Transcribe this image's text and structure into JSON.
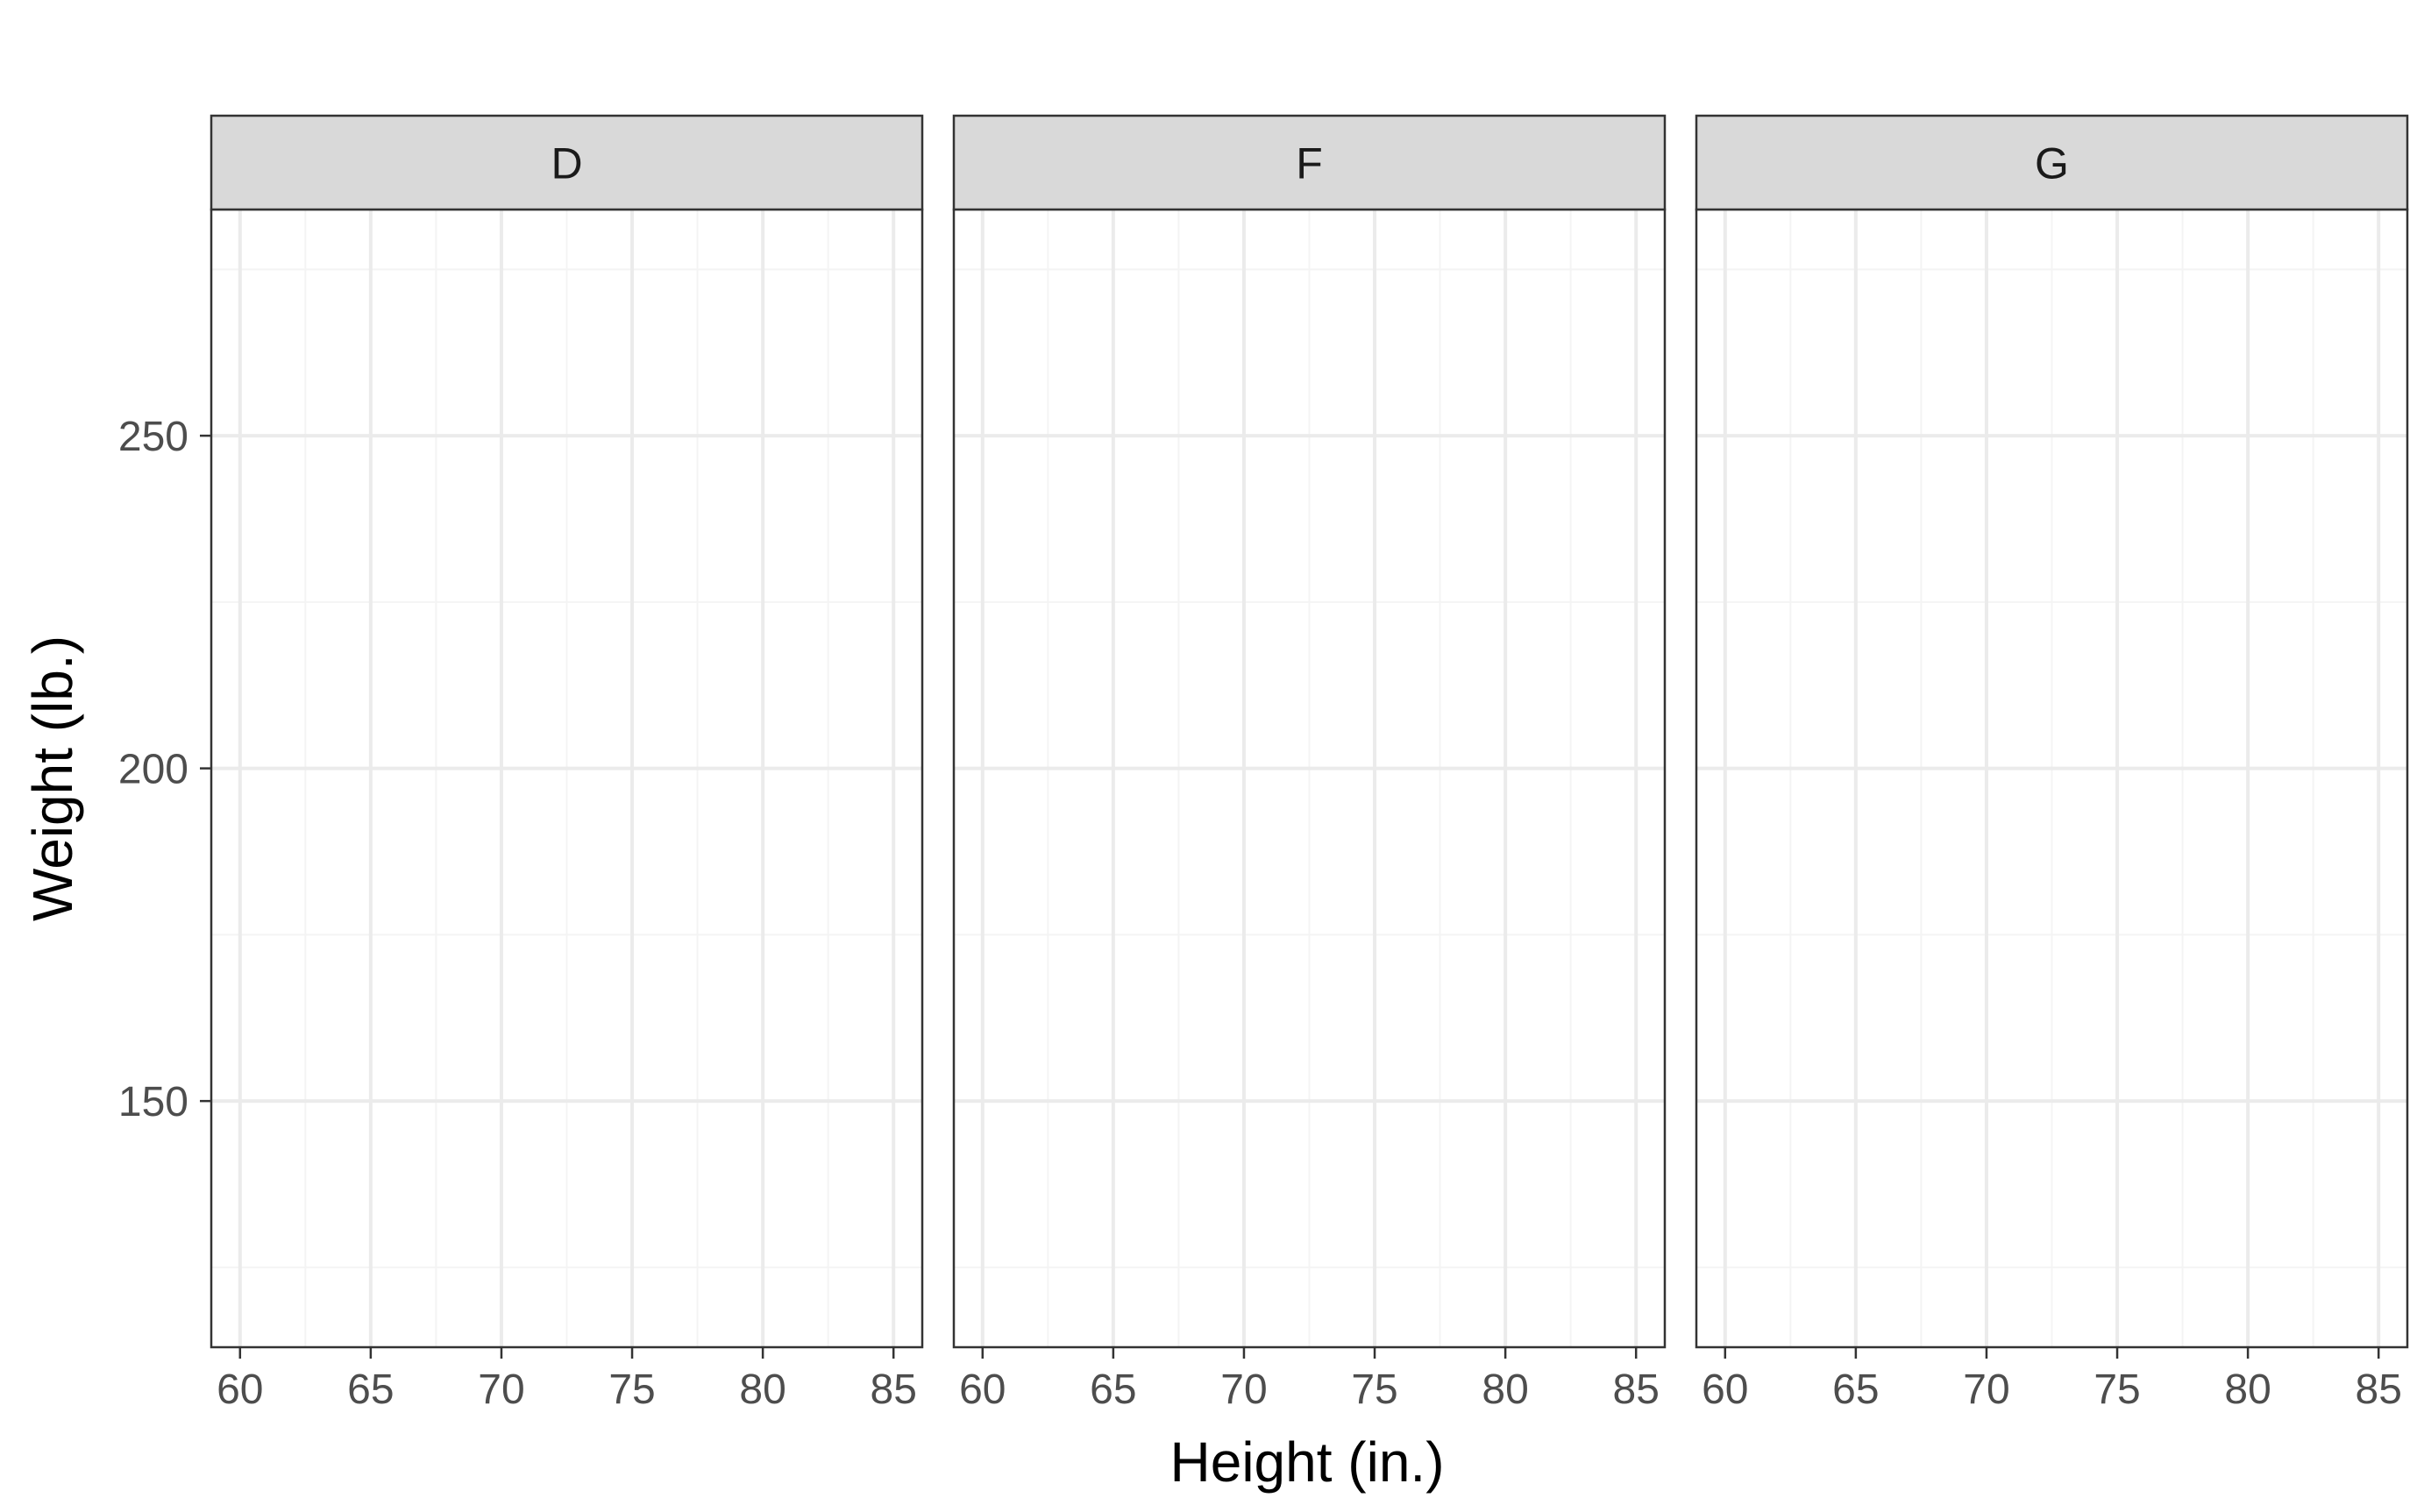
{
  "chart_data": {
    "type": "scatter",
    "xlabel": "Height (in.)",
    "ylabel": "Weight (lb.)",
    "xlim": [
      58.9,
      86.1
    ],
    "ylim": [
      113,
      284
    ],
    "x_ticks": [
      60,
      65,
      70,
      75,
      80,
      85
    ],
    "x_tick_labels": [
      "60",
      "65",
      "70",
      "75",
      "80",
      "85"
    ],
    "y_ticks": [
      150,
      200,
      250
    ],
    "y_tick_labels": [
      "150",
      "200",
      "250"
    ],
    "grid": true,
    "legend": "none",
    "panels": [
      {
        "label": "D",
        "points": []
      },
      {
        "label": "F",
        "points": []
      },
      {
        "label": "G",
        "points": []
      }
    ]
  },
  "colors": {
    "background": "#ffffff",
    "strip_fill": "#d9d9d9",
    "panel_border": "#333333",
    "grid_major": "#ebebeb",
    "grid_minor": "#f4f4f4",
    "tick_text": "#4d4d4d",
    "title_text": "#000000",
    "strip_text": "#1a1a1a"
  }
}
